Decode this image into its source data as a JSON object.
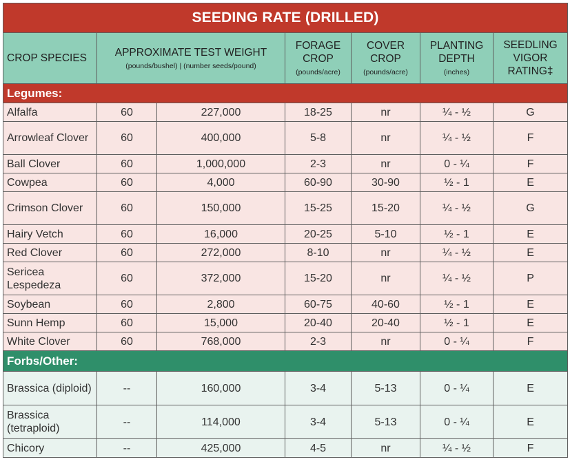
{
  "title": "SEEDING RATE (DRILLED)",
  "headers": {
    "crop_species": "CROP SPECIES",
    "test_weight": "APPROXIMATE TEST WEIGHT",
    "test_weight_sub": "(pounds/bushel) | (number seeds/pound)",
    "forage_crop": "FORAGE CROP",
    "forage_crop_sub": "(pounds/acre)",
    "cover_crop": "COVER CROP",
    "cover_crop_sub": "(pounds/acre)",
    "planting_depth": "PLANTING DEPTH",
    "planting_depth_sub": "(inches)",
    "seedling_vigor": "SEEDLING VIGOR RATING‡"
  },
  "sections": {
    "legumes": "Legumes:",
    "forbs": "Forbs/Other:"
  },
  "legumes": [
    {
      "name": "Alfalfa",
      "lb_bu": "60",
      "seeds_lb": "227,000",
      "forage": "18-25",
      "cover": "nr",
      "depth": "¼ - ½",
      "vigor": "G"
    },
    {
      "name": "Arrowleaf Clover",
      "lb_bu": "60",
      "seeds_lb": "400,000",
      "forage": "5-8",
      "cover": "nr",
      "depth": "¼ - ½",
      "vigor": "F"
    },
    {
      "name": "Ball Clover",
      "lb_bu": "60",
      "seeds_lb": "1,000,000",
      "forage": "2-3",
      "cover": "nr",
      "depth": "0 - ¼",
      "vigor": "F"
    },
    {
      "name": "Cowpea",
      "lb_bu": "60",
      "seeds_lb": "4,000",
      "forage": "60-90",
      "cover": "30-90",
      "depth": "½ - 1",
      "vigor": "E"
    },
    {
      "name": "Crimson Clover",
      "lb_bu": "60",
      "seeds_lb": "150,000",
      "forage": "15-25",
      "cover": "15-20",
      "depth": "¼ - ½",
      "vigor": "G"
    },
    {
      "name": "Hairy Vetch",
      "lb_bu": "60",
      "seeds_lb": "16,000",
      "forage": "20-25",
      "cover": "5-10",
      "depth": "½ - 1",
      "vigor": "E"
    },
    {
      "name": "Red Clover",
      "lb_bu": "60",
      "seeds_lb": "272,000",
      "forage": "8-10",
      "cover": "nr",
      "depth": "¼ - ½",
      "vigor": "E"
    },
    {
      "name": "Sericea Lespedeza",
      "lb_bu": "60",
      "seeds_lb": "372,000",
      "forage": "15-20",
      "cover": "nr",
      "depth": "¼ - ½",
      "vigor": "P"
    },
    {
      "name": "Soybean",
      "lb_bu": "60",
      "seeds_lb": "2,800",
      "forage": "60-75",
      "cover": "40-60",
      "depth": "½ - 1",
      "vigor": "E"
    },
    {
      "name": "Sunn Hemp",
      "lb_bu": "60",
      "seeds_lb": "15,000",
      "forage": "20-40",
      "cover": "20-40",
      "depth": "½ - 1",
      "vigor": "E"
    },
    {
      "name": "White Clover",
      "lb_bu": "60",
      "seeds_lb": "768,000",
      "forage": "2-3",
      "cover": "nr",
      "depth": "0 - ¼",
      "vigor": "F"
    }
  ],
  "forbs": [
    {
      "name": "Brassica (diploid)",
      "lb_bu": "--",
      "seeds_lb": "160,000",
      "forage": "3-4",
      "cover": "5-13",
      "depth": "0 - ¼",
      "vigor": "E"
    },
    {
      "name": "Brassica (tetraploid)",
      "lb_bu": "--",
      "seeds_lb": "114,000",
      "forage": "3-4",
      "cover": "5-13",
      "depth": "0 - ¼",
      "vigor": "E"
    },
    {
      "name": "Chicory",
      "lb_bu": "--",
      "seeds_lb": "425,000",
      "forage": "4-5",
      "cover": "nr",
      "depth": "¼ - ½",
      "vigor": "F"
    }
  ]
}
